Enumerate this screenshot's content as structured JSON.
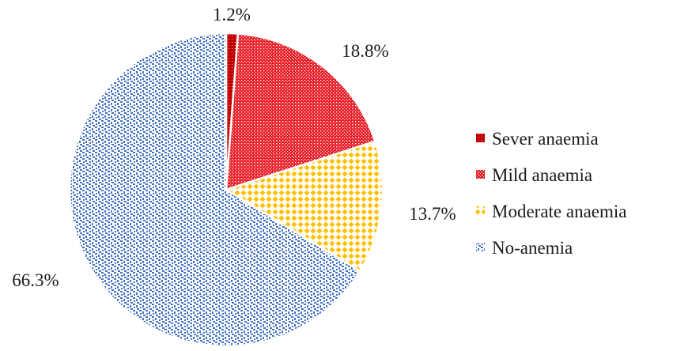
{
  "chart_data": {
    "type": "pie",
    "title": "",
    "legend_position": "right",
    "slices": [
      {
        "name": "Sever anaemia",
        "value": 1.2,
        "label": "1.2%",
        "color": "#c00000",
        "pattern": "dense-dots"
      },
      {
        "name": "Mild anaemia",
        "value": 18.8,
        "label": "18.8%",
        "color": "#e8202a",
        "pattern": "fine-dots"
      },
      {
        "name": "Moderate anaemia",
        "value": 13.7,
        "label": "13.7%",
        "color": "#ffc000",
        "pattern": "diamond-grid"
      },
      {
        "name": "No-anemia",
        "value": 66.3,
        "label": "66.3%",
        "color": "#4472c4",
        "pattern": "confetti"
      }
    ]
  }
}
